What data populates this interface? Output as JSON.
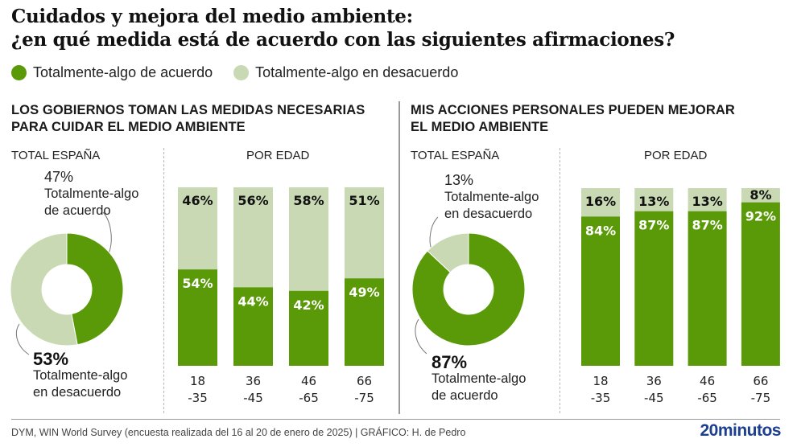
{
  "header": {
    "title_line1": "Cuidados y mejora del medio ambiente:",
    "title_line2": "¿en qué medida está de acuerdo con las siguientes afirmaciones?"
  },
  "legend": [
    {
      "label": "Totalmente-algo de acuerdo",
      "color": "#5a9a08"
    },
    {
      "label": "Totalmente-algo en desacuerdo",
      "color": "#c8d9b3"
    }
  ],
  "colors": {
    "agree": "#5a9a08",
    "disagree": "#c8d9b3",
    "brand": "#1c3f8f"
  },
  "panels": [
    {
      "title_line1": "LOS GOBIERNOS TOMAN LAS MEDIDAS NECESARIAS",
      "title_line2": "PARA CUIDAR EL MEDIO AMBIENTE",
      "total_label": "TOTAL ESPAÑA",
      "age_label": "POR EDAD",
      "donut_top": {
        "pct": "47%",
        "line1": "Totalmente-algo",
        "line2": "de acuerdo"
      },
      "donut_bottom": {
        "pct": "53%",
        "line1": "Totalmente-algo",
        "line2": "en desacuerdo"
      }
    },
    {
      "title_line1": "MIS ACCIONES PERSONALES PUEDEN MEJORAR",
      "title_line2": "EL MEDIO AMBIENTE",
      "total_label": "TOTAL ESPAÑA",
      "age_label": "POR EDAD",
      "donut_top": {
        "pct": "13%",
        "line1": "Totalmente-algo",
        "line2": "en desacuerdo"
      },
      "donut_bottom": {
        "pct": "87%",
        "line1": "Totalmente-algo",
        "line2": "de acuerdo"
      }
    }
  ],
  "chart_data": [
    {
      "type": "pie",
      "title": "LOS GOBIERNOS TOMAN LAS MEDIDAS NECESARIAS PARA CUIDAR EL MEDIO AMBIENTE — TOTAL ESPAÑA",
      "categories": [
        "Totalmente-algo de acuerdo",
        "Totalmente-algo en desacuerdo"
      ],
      "values": [
        47,
        53
      ],
      "donut": true
    },
    {
      "type": "bar",
      "stacked": true,
      "title": "LOS GOBIERNOS TOMAN LAS MEDIDAS NECESARIAS PARA CUIDAR EL MEDIO AMBIENTE — POR EDAD",
      "categories": [
        [
          "18",
          "-35"
        ],
        [
          "36",
          "-45"
        ],
        [
          "46",
          "-65"
        ],
        [
          "66",
          "-75"
        ]
      ],
      "series": [
        {
          "name": "Totalmente-algo de acuerdo",
          "values": [
            54,
            44,
            42,
            49
          ]
        },
        {
          "name": "Totalmente-algo en desacuerdo",
          "values": [
            46,
            56,
            58,
            51
          ]
        }
      ],
      "ylim": [
        0,
        100
      ]
    },
    {
      "type": "pie",
      "title": "MIS ACCIONES PERSONALES PUEDEN MEJORAR EL MEDIO AMBIENTE — TOTAL ESPAÑA",
      "categories": [
        "Totalmente-algo de acuerdo",
        "Totalmente-algo en desacuerdo"
      ],
      "values": [
        87,
        13
      ],
      "donut": true
    },
    {
      "type": "bar",
      "stacked": true,
      "title": "MIS ACCIONES PERSONALES PUEDEN MEJORAR EL MEDIO AMBIENTE — POR EDAD",
      "categories": [
        [
          "18",
          "-35"
        ],
        [
          "36",
          "-45"
        ],
        [
          "46",
          "-65"
        ],
        [
          "66",
          "-75"
        ]
      ],
      "series": [
        {
          "name": "Totalmente-algo de acuerdo",
          "values": [
            84,
            87,
            87,
            92
          ]
        },
        {
          "name": "Totalmente-algo en desacuerdo",
          "values": [
            16,
            13,
            13,
            8
          ]
        }
      ],
      "ylim": [
        0,
        100
      ]
    }
  ],
  "footer": {
    "source": "DYM, WIN World Survey (encuesta realizada del 16 al 20 de enero de 2025)  |  GRÁFICO: H. de Pedro",
    "brand": "20minutos"
  }
}
